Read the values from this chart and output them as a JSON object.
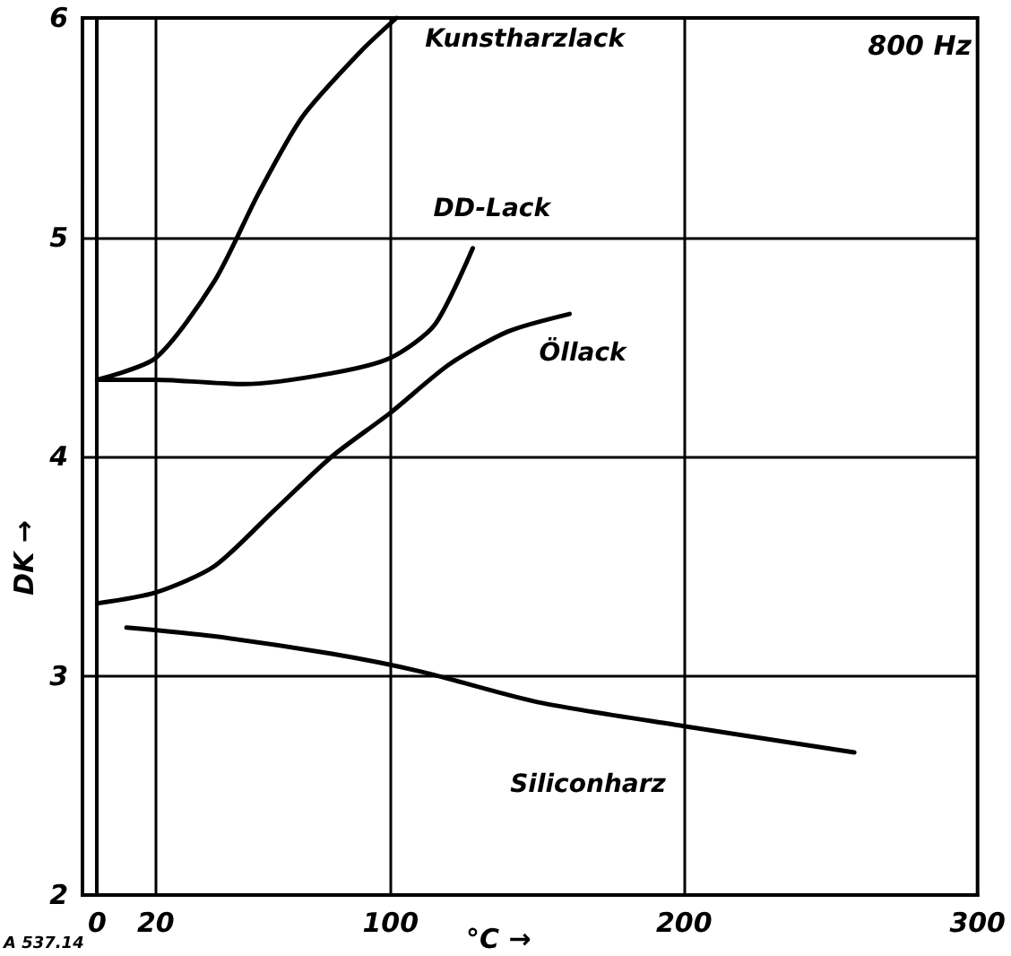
{
  "chart_data": {
    "type": "line",
    "xlabel": "°C →",
    "ylabel": "DK →",
    "annotations": [
      "800 Hz",
      "A 537.14"
    ],
    "xlim": [
      -5,
      300
    ],
    "ylim": [
      2,
      6
    ],
    "xticks": [
      0,
      20,
      100,
      200,
      300
    ],
    "yticks": [
      2,
      3,
      4,
      5,
      6
    ],
    "grid": true,
    "legend": false,
    "marker": "none",
    "line_style": "solid",
    "series": [
      {
        "name": "Kunstharzlack",
        "color": "#000000",
        "x": [
          0,
          20,
          40,
          55,
          70,
          90,
          102
        ],
        "values": [
          4.35,
          4.45,
          4.8,
          5.2,
          5.55,
          5.85,
          6.0
        ]
      },
      {
        "name": "DD-Lack",
        "color": "#000000",
        "x": [
          0,
          20,
          50,
          80,
          100,
          115,
          128
        ],
        "values": [
          4.35,
          4.35,
          4.33,
          4.38,
          4.45,
          4.6,
          4.95
        ]
      },
      {
        "name": "Öllack",
        "color": "#000000",
        "x": [
          0,
          20,
          40,
          60,
          80,
          100,
          120,
          140,
          161
        ],
        "values": [
          3.33,
          3.38,
          3.5,
          3.75,
          4.0,
          4.2,
          4.42,
          4.57,
          4.65
        ]
      },
      {
        "name": "Siliconharz",
        "color": "#000000",
        "x": [
          10,
          40,
          80,
          110,
          150,
          200,
          258
        ],
        "values": [
          3.22,
          3.18,
          3.1,
          3.02,
          2.88,
          2.77,
          2.65
        ]
      }
    ]
  }
}
